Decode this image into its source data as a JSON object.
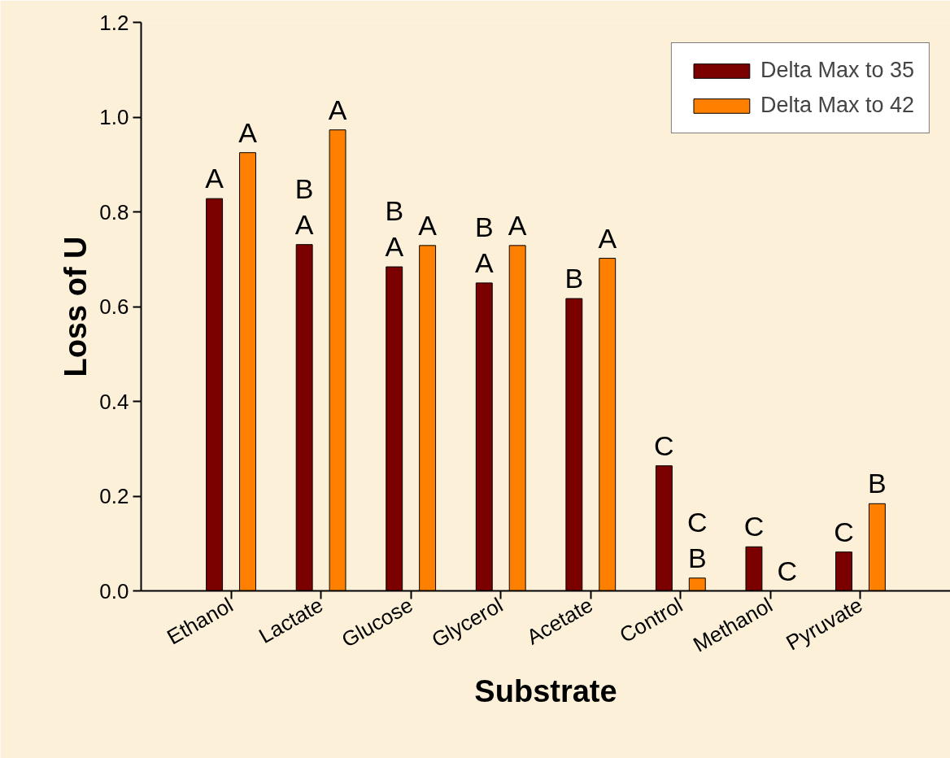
{
  "chart_data": {
    "type": "bar",
    "xlabel": "Substrate",
    "ylabel": "Loss of U",
    "categories": [
      "Ethanol",
      "Lactate",
      "Glucose",
      "Glycerol",
      "Acetate",
      "Control",
      "Methanol",
      "Pyruvate"
    ],
    "series": [
      {
        "name": "Delta Max to 35",
        "color": "#7b0000",
        "values": [
          0.828,
          0.731,
          0.684,
          0.65,
          0.617,
          0.264,
          0.093,
          0.082
        ],
        "value_labels": [
          "A",
          "B\nA",
          "B\nA",
          "B\nA",
          "B",
          "C",
          "C",
          "C"
        ]
      },
      {
        "name": "Delta Max to 42",
        "color": "#ff8000",
        "values": [
          0.925,
          0.973,
          0.729,
          0.729,
          0.702,
          0.027,
          null,
          0.184
        ],
        "value_labels": [
          "A",
          "A",
          "A",
          "A",
          "A",
          "C\nB",
          "C",
          "B"
        ]
      }
    ],
    "ylim": [
      0,
      1.2
    ],
    "yticks": [
      {
        "value": 0,
        "label": "0.0"
      },
      {
        "value": 0.2,
        "label": "0.2"
      },
      {
        "value": 0.4,
        "label": "0.4"
      },
      {
        "value": 0.6,
        "label": "0.6"
      },
      {
        "value": 0.8,
        "label": "0.8"
      },
      {
        "value": 1.0,
        "label": "1.0"
      },
      {
        "value": 1.2,
        "label": "1.2"
      }
    ],
    "grid": false,
    "legend": "top right"
  }
}
